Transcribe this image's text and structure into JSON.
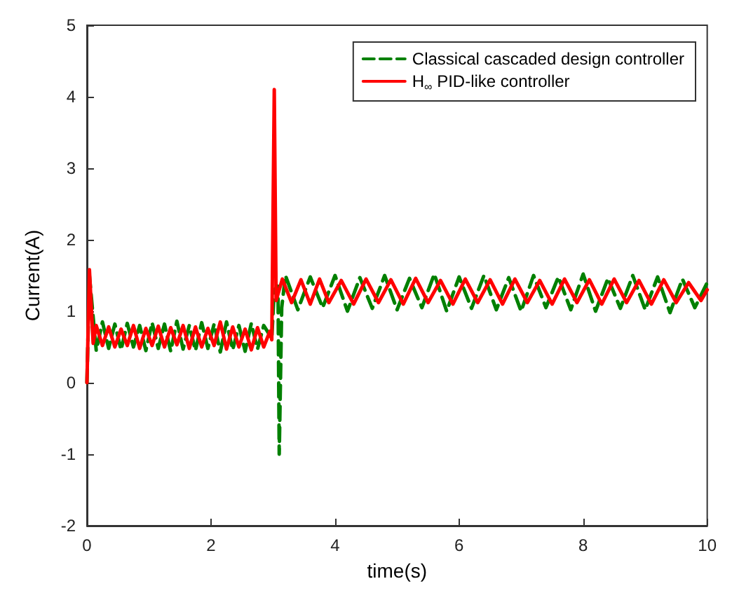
{
  "chart_data": {
    "type": "line",
    "xlabel": "time(s)",
    "ylabel": "Current(A)",
    "xlim": [
      0,
      10
    ],
    "xticks": [
      0,
      2,
      4,
      6,
      8,
      10
    ],
    "ylim": [
      -2,
      5
    ],
    "yticks": [
      -2,
      -1,
      0,
      1,
      2,
      3,
      4,
      5
    ],
    "grid": false,
    "legend": "top right",
    "marker": "none",
    "series": [
      {
        "name": "Classical cascaded design controller",
        "color": "#008000",
        "line_style": "dashed",
        "x": [
          0,
          0.04,
          0.1,
          0.15,
          0.25,
          0.35,
          0.45,
          0.55,
          0.65,
          0.75,
          0.85,
          0.95,
          1.05,
          1.15,
          1.25,
          1.35,
          1.45,
          1.55,
          1.65,
          1.75,
          1.85,
          1.95,
          2.05,
          2.15,
          2.25,
          2.35,
          2.45,
          2.55,
          2.65,
          2.75,
          2.85,
          2.98,
          3.02,
          3.08,
          3.1,
          3.14,
          3.2,
          3.4,
          3.6,
          3.8,
          4.0,
          4.2,
          4.4,
          4.6,
          4.8,
          5.0,
          5.2,
          5.4,
          5.6,
          5.8,
          6.0,
          6.2,
          6.4,
          6.6,
          6.8,
          7.0,
          7.2,
          7.4,
          7.6,
          7.8,
          8.0,
          8.2,
          8.4,
          8.6,
          8.8,
          9.0,
          9.2,
          9.4,
          9.6,
          9.8,
          10
        ],
        "values": [
          0,
          1.5,
          0.92,
          0.45,
          0.85,
          0.48,
          0.82,
          0.46,
          0.83,
          0.5,
          0.8,
          0.45,
          0.84,
          0.48,
          0.82,
          0.44,
          0.86,
          0.47,
          0.8,
          0.45,
          0.84,
          0.48,
          0.82,
          0.43,
          0.85,
          0.46,
          0.8,
          0.44,
          0.83,
          0.47,
          0.8,
          0.62,
          1.3,
          1.35,
          -1,
          1.05,
          1.5,
          1.02,
          1.48,
          1.05,
          1.5,
          1.0,
          1.47,
          1.04,
          1.5,
          1.02,
          1.46,
          1.05,
          1.52,
          1.0,
          1.48,
          1.04,
          1.5,
          1.02,
          1.47,
          1.0,
          1.5,
          1.05,
          1.48,
          1.02,
          1.52,
          1.0,
          1.46,
          1.04,
          1.5,
          1.02,
          1.48,
          0.98,
          1.45,
          1.05,
          1.4
        ]
      },
      {
        "name": "H$_{∞}$ PID-like controller",
        "color": "#ff0000",
        "line_style": "solid",
        "x": [
          0,
          0.04,
          0.1,
          0.15,
          0.25,
          0.35,
          0.45,
          0.55,
          0.65,
          0.75,
          0.85,
          0.95,
          1.05,
          1.15,
          1.25,
          1.35,
          1.45,
          1.55,
          1.65,
          1.75,
          1.85,
          1.95,
          2.05,
          2.15,
          2.25,
          2.35,
          2.45,
          2.55,
          2.65,
          2.75,
          2.85,
          2.95,
          2.98,
          3.02,
          3.05,
          3.15,
          3.3,
          3.45,
          3.6,
          3.75,
          3.9,
          4.1,
          4.3,
          4.5,
          4.7,
          4.9,
          5.1,
          5.3,
          5.5,
          5.7,
          5.9,
          6.1,
          6.3,
          6.5,
          6.7,
          6.9,
          7.1,
          7.3,
          7.5,
          7.7,
          7.9,
          8.1,
          8.3,
          8.5,
          8.7,
          8.9,
          9.1,
          9.3,
          9.5,
          9.7,
          9.9,
          10
        ],
        "values": [
          0,
          1.58,
          0.55,
          0.8,
          0.52,
          0.78,
          0.5,
          0.75,
          0.52,
          0.8,
          0.48,
          0.76,
          0.52,
          0.79,
          0.5,
          0.77,
          0.53,
          0.8,
          0.48,
          0.78,
          0.5,
          0.76,
          0.52,
          0.85,
          0.47,
          0.78,
          0.5,
          0.75,
          0.46,
          0.77,
          0.5,
          0.72,
          0.6,
          4.1,
          1.15,
          1.45,
          1.12,
          1.44,
          1.1,
          1.45,
          1.12,
          1.43,
          1.1,
          1.45,
          1.12,
          1.44,
          1.1,
          1.46,
          1.12,
          1.43,
          1.1,
          1.45,
          1.12,
          1.44,
          1.1,
          1.45,
          1.12,
          1.43,
          1.1,
          1.45,
          1.12,
          1.44,
          1.1,
          1.45,
          1.12,
          1.43,
          1.1,
          1.44,
          1.12,
          1.4,
          1.15,
          1.3
        ]
      }
    ]
  }
}
